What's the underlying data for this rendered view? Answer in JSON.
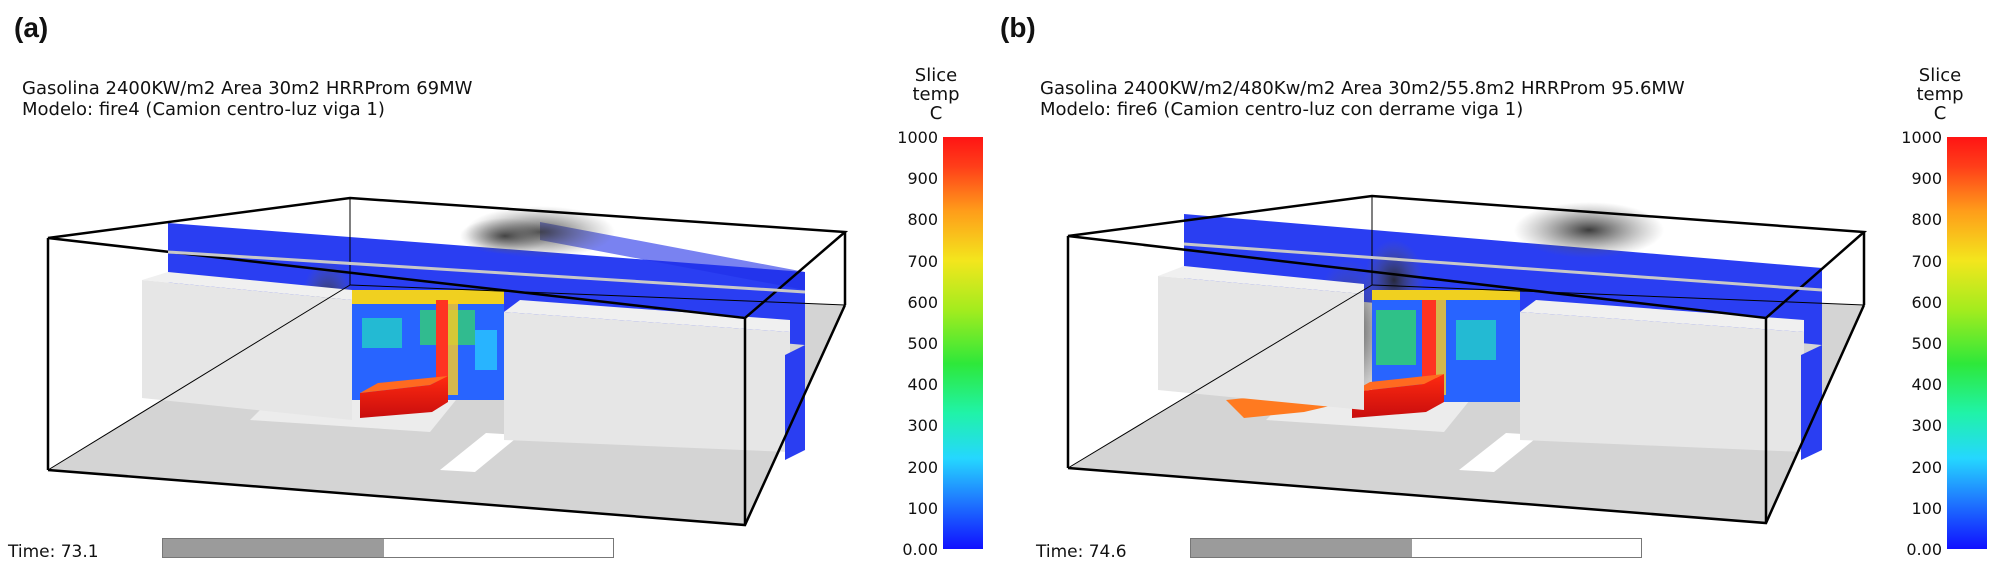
{
  "panels": [
    {
      "label": "(a)",
      "caption_line1": "Gasolina 2400KW/m2 Area 30m2 HRRProm 69MW",
      "caption_line2": "Modelo: fire4 (Camion centro-luz viga 1)",
      "time_text": "Time: 73.1",
      "progress": 0.49
    },
    {
      "label": "(b)",
      "caption_line1": "Gasolina 2400KW/m2/480Kw/m2 Area 30m2/55.8m2 HRRProm 95.6MW",
      "caption_line2": "Modelo: fire6 (Camion centro-luz con derrame viga 1)",
      "time_text": "Time: 74.6",
      "progress": 0.49
    }
  ],
  "legend": {
    "title_line1": "Slice",
    "title_line2": "temp",
    "title_line3": "C",
    "ticks": [
      "1000",
      "900",
      "800",
      "700",
      "600",
      "500",
      "400",
      "300",
      "200",
      "100",
      "0.00"
    ]
  }
}
